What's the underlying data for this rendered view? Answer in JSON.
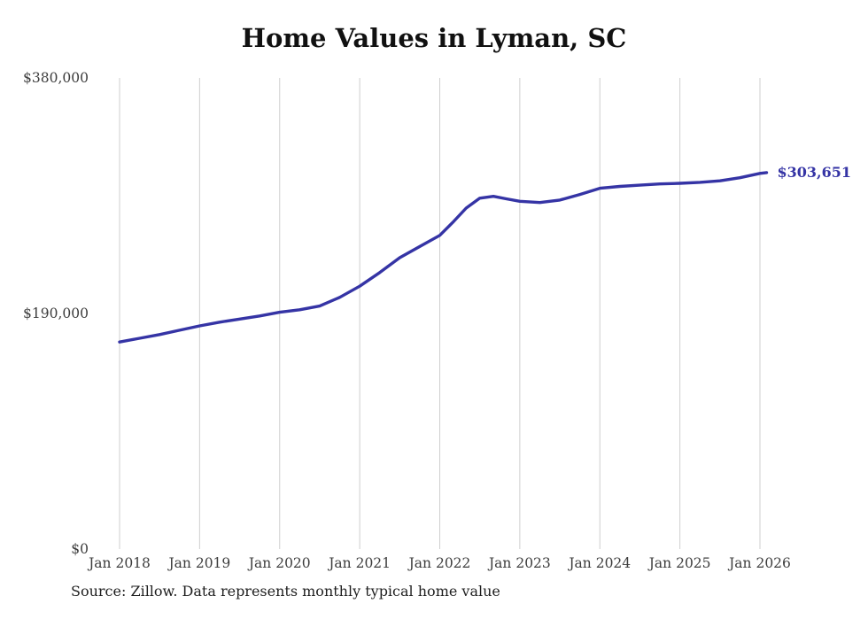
{
  "page": {
    "background": "#ffffff"
  },
  "chart_data": {
    "type": "line",
    "title": "Home Values in Lyman, SC",
    "xlabel": "",
    "ylabel": "",
    "x_unit": "decimal year (monthly typical home value)",
    "ylim": [
      0,
      380000
    ],
    "xlim": [
      2018,
      2026
    ],
    "grid": "vertical-only",
    "legend": "none",
    "line_color": "#3534a5",
    "grid_color": "#cfcfcf",
    "axis_label_color": "#3d3d3d",
    "end_label": "$303,651",
    "end_value": 303651,
    "y_ticks": [
      {
        "value": 0,
        "label": "$0"
      },
      {
        "value": 190000,
        "label": "$190,000"
      },
      {
        "value": 380000,
        "label": "$380,000"
      }
    ],
    "x_ticks": [
      {
        "x": 2018,
        "label": "Jan 2018"
      },
      {
        "x": 2019,
        "label": "Jan 2019"
      },
      {
        "x": 2020,
        "label": "Jan 2020"
      },
      {
        "x": 2021,
        "label": "Jan 2021"
      },
      {
        "x": 2022,
        "label": "Jan 2022"
      },
      {
        "x": 2023,
        "label": "Jan 2023"
      },
      {
        "x": 2024,
        "label": "Jan 2024"
      },
      {
        "x": 2025,
        "label": "Jan 2025"
      },
      {
        "x": 2026,
        "label": "Jan 2026"
      }
    ],
    "series": [
      {
        "name": "Monthly typical home value",
        "x": [
          2018.0,
          2018.25,
          2018.5,
          2018.75,
          2019.0,
          2019.25,
          2019.5,
          2019.75,
          2020.0,
          2020.25,
          2020.5,
          2020.75,
          2021.0,
          2021.25,
          2021.5,
          2021.75,
          2022.0,
          2022.17,
          2022.33,
          2022.5,
          2022.67,
          2022.83,
          2023.0,
          2023.25,
          2023.5,
          2023.75,
          2024.0,
          2024.25,
          2024.5,
          2024.75,
          2025.0,
          2025.25,
          2025.5,
          2025.75,
          2026.0,
          2026.083
        ],
        "values": [
          167000,
          170000,
          173000,
          176500,
          180000,
          183000,
          185500,
          188000,
          191000,
          193000,
          196000,
          203000,
          212000,
          223000,
          235000,
          244000,
          253000,
          264000,
          275000,
          283000,
          284500,
          282500,
          280500,
          279500,
          281500,
          286000,
          291000,
          292500,
          293500,
          294500,
          295000,
          295800,
          297000,
          299500,
          303000,
          303651
        ]
      }
    ]
  },
  "footer": {
    "source": "Source: Zillow. Data represents monthly typical home value"
  }
}
